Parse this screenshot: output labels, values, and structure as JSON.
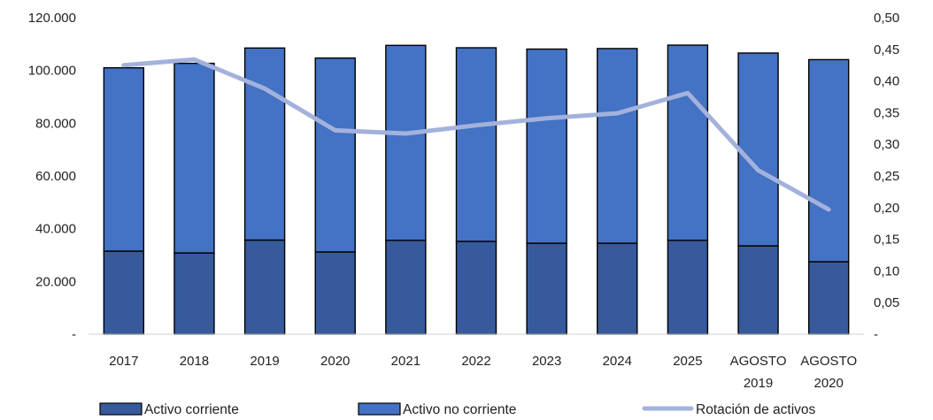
{
  "chart_data": {
    "type": "bar",
    "stacked": true,
    "categories": [
      [
        "2017"
      ],
      [
        "2018"
      ],
      [
        "2019"
      ],
      [
        "2020"
      ],
      [
        "2021"
      ],
      [
        "2022"
      ],
      [
        "2023"
      ],
      [
        "2024"
      ],
      [
        "2025"
      ],
      [
        "AGOSTO",
        "2019"
      ],
      [
        "AGOSTO",
        "2020"
      ]
    ],
    "series": [
      {
        "name": "Activo corriente",
        "kind": "bar",
        "axis": "left",
        "color": "#365a9c",
        "values": [
          31500,
          30800,
          35700,
          31200,
          35600,
          35200,
          34500,
          34500,
          35600,
          33500,
          27500
        ]
      },
      {
        "name": "Activo no corriente",
        "kind": "bar",
        "axis": "left",
        "color": "#4472c4",
        "values": [
          69500,
          71900,
          72800,
          73500,
          73900,
          73400,
          73600,
          73800,
          74000,
          73100,
          76600
        ]
      },
      {
        "name": "Rotación de activos",
        "kind": "line",
        "axis": "right",
        "color": "#a3b2dc",
        "values": [
          0.425,
          0.434,
          0.388,
          0.322,
          0.317,
          0.33,
          0.341,
          0.349,
          0.381,
          0.259,
          0.197
        ]
      }
    ],
    "y_left": {
      "lim": [
        0,
        120000
      ],
      "ticks": [
        0,
        20000,
        40000,
        60000,
        80000,
        100000,
        120000
      ],
      "tick_labels": [
        "-",
        "20.000",
        "40.000",
        "60.000",
        "80.000",
        "100.000",
        "120.000"
      ]
    },
    "y_right": {
      "lim": [
        0,
        0.5
      ],
      "ticks": [
        0,
        0.05,
        0.1,
        0.15,
        0.2,
        0.25,
        0.3,
        0.35,
        0.4,
        0.45,
        0.5
      ],
      "tick_labels": [
        "-",
        "0,05",
        "0,10",
        "0,15",
        "0,20",
        "0,25",
        "0,30",
        "0,35",
        "0,40",
        "0,45",
        "0,50"
      ]
    },
    "grid": false,
    "legend_position": "bottom"
  }
}
